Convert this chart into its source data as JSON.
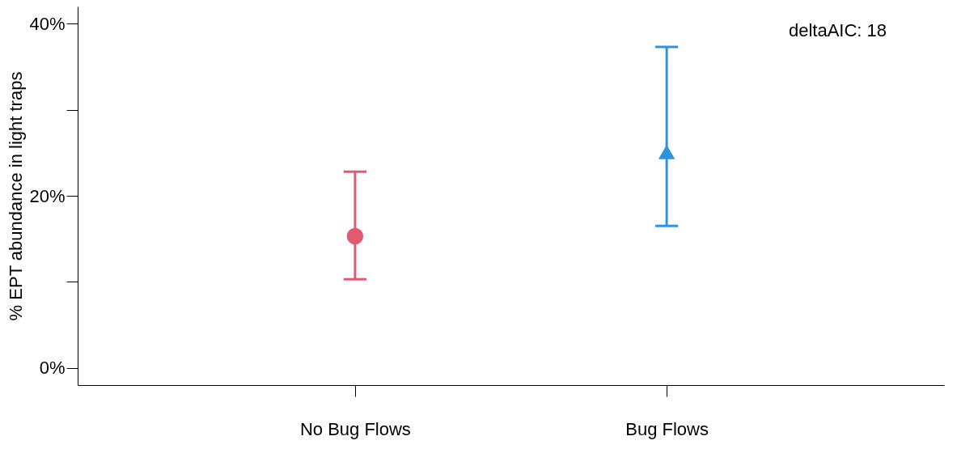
{
  "chart_data": {
    "type": "scatter",
    "ylabel": "% EPT abundance in light traps",
    "categories": [
      "No Bug Flows",
      "Bug Flows"
    ],
    "series": [
      {
        "x": [
          "No Bug Flows"
        ],
        "values": [
          15.3
        ],
        "errors": [
          [
            10.3,
            22.8
          ]
        ],
        "color": "#e05a70",
        "marker": "circle"
      },
      {
        "x": [
          "Bug Flows"
        ],
        "values": [
          25.1
        ],
        "errors": [
          [
            16.5,
            37.3
          ]
        ],
        "color": "#2f93de",
        "marker": "triangle"
      }
    ],
    "ylim": [
      -2,
      42
    ],
    "yticks": [
      {
        "value": 0,
        "label": "0%"
      },
      {
        "value": 10,
        "label": null
      },
      {
        "value": 20,
        "label": "20%"
      },
      {
        "value": 30,
        "label": null
      },
      {
        "value": 40,
        "label": "40%"
      }
    ],
    "annotations": [
      "deltaAIC: 18"
    ],
    "grid": false,
    "legend": false
  }
}
